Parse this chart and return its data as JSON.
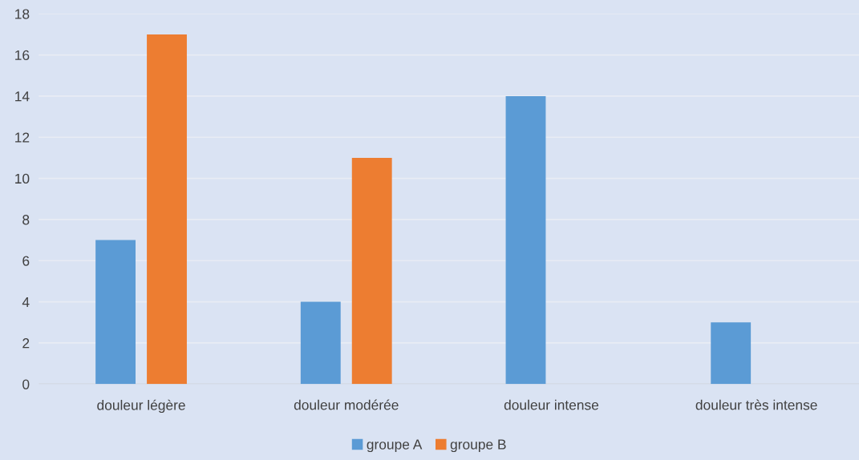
{
  "chart_data": {
    "type": "bar",
    "categories": [
      "douleur légère",
      "douleur modérée",
      "douleur intense",
      "douleur très intense"
    ],
    "series": [
      {
        "name": "groupe A",
        "color": "#5b9bd5",
        "values": [
          7,
          4,
          14,
          3
        ]
      },
      {
        "name": "groupe B",
        "color": "#ed7d31",
        "values": [
          17,
          11,
          0,
          0
        ]
      }
    ],
    "ylim": [
      0,
      18
    ],
    "yticks": [
      0,
      2,
      4,
      6,
      8,
      10,
      12,
      14,
      16,
      18
    ],
    "grid": "y",
    "legend": "bottom"
  }
}
